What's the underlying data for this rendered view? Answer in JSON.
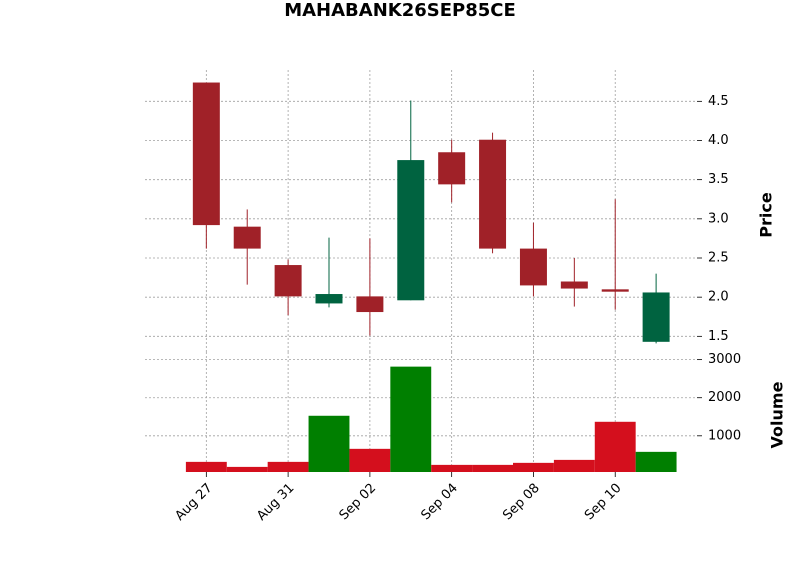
{
  "chart_data": {
    "type": "candlestick",
    "title": "MAHABANK26SEP85CE",
    "ylabel": "Price",
    "volume_label": "Volume",
    "categories": [
      "Aug 27",
      null,
      "Aug 31",
      null,
      "Sep 02",
      null,
      "Sep 04",
      null,
      "Sep 08",
      null,
      "Sep 10",
      null
    ],
    "open": [
      4.74,
      2.9,
      2.41,
      1.92,
      2.01,
      1.96,
      3.85,
      4.01,
      2.62,
      2.2,
      2.1,
      1.43
    ],
    "high": [
      4.74,
      3.12,
      2.48,
      2.76,
      2.75,
      4.51,
      4.01,
      4.1,
      2.95,
      2.5,
      3.25,
      2.3
    ],
    "low": [
      2.62,
      2.16,
      1.77,
      1.87,
      1.51,
      1.96,
      3.21,
      2.56,
      2.01,
      1.88,
      1.84,
      1.41
    ],
    "close": [
      2.92,
      2.62,
      2.01,
      2.04,
      1.81,
      3.75,
      3.44,
      2.62,
      2.15,
      2.11,
      2.07,
      2.06
    ],
    "volume": [
      316,
      184,
      316,
      1526,
      658,
      2816,
      237,
      237,
      290,
      368,
      1368,
      579
    ],
    "up_color": "#006340",
    "down_color": "#a02128",
    "volume_up_color": "#007f00",
    "volume_down_color": "#d40f1d",
    "xlim": [
      -1.5,
      12
    ],
    "ylim": [
      1.3,
      4.9
    ],
    "yticks": [
      1.5,
      {
        "value": 2,
        "label": "2.0"
      },
      2.5,
      {
        "value": 3,
        "label": "3.0"
      },
      3.5,
      {
        "value": 4,
        "label": "4.0"
      },
      4.5
    ],
    "volume_ylim": [
      50,
      3200
    ],
    "volume_yticks": [
      1000,
      2000,
      3000
    ],
    "grid": true
  }
}
